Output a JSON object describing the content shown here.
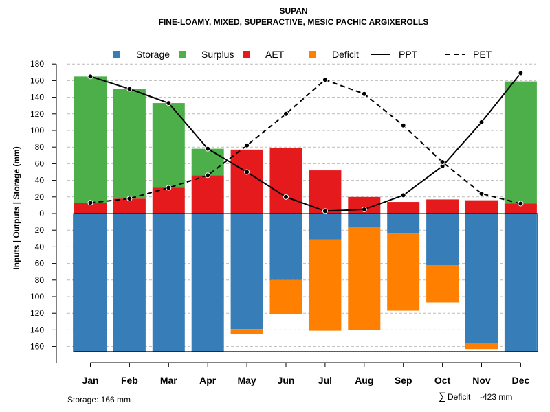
{
  "chart_data": {
    "type": "bar",
    "title": "SUPAN",
    "subtitle": "FINE-LOAMY, MIXED, SUPERACTIVE, MESIC PACHIC ARGIXEROLLS",
    "ylabel": "Inputs | Outputs | Storage    (mm)",
    "ylim": [
      -166,
      180
    ],
    "yticks": [
      180,
      160,
      140,
      120,
      100,
      80,
      60,
      40,
      20,
      0,
      -20,
      -40,
      -60,
      -80,
      -100,
      -120,
      -140,
      -160
    ],
    "ytick_labels": [
      "180",
      "160",
      "140",
      "120",
      "100",
      "80",
      "60",
      "40",
      "20",
      "0",
      "20",
      "40",
      "60",
      "80",
      "100",
      "120",
      "140",
      "160"
    ],
    "categories": [
      "Jan",
      "Feb",
      "Mar",
      "Apr",
      "May",
      "Jun",
      "Jul",
      "Aug",
      "Sep",
      "Oct",
      "Nov",
      "Dec"
    ],
    "colors": {
      "storage": "#377eb8",
      "surplus": "#4daf4a",
      "aet": "#e41a1c",
      "deficit": "#ff7f00",
      "line": "#000000",
      "grid": "#bbbbbb"
    },
    "legend": [
      {
        "key": "storage",
        "label": "Storage",
        "kind": "box"
      },
      {
        "key": "surplus",
        "label": "Surplus",
        "kind": "box"
      },
      {
        "key": "aet",
        "label": "AET",
        "kind": "box"
      },
      {
        "key": "deficit",
        "label": "Deficit",
        "kind": "box"
      },
      {
        "key": "ppt",
        "label": "PPT",
        "kind": "solid-line"
      },
      {
        "key": "pet",
        "label": "PET",
        "kind": "dashed-line"
      }
    ],
    "series": {
      "aet": [
        13,
        18,
        31,
        46,
        77,
        79,
        52,
        20,
        14,
        17,
        16,
        12
      ],
      "surplus": [
        152,
        132,
        102,
        32,
        0,
        0,
        0,
        0,
        0,
        0,
        0,
        147
      ],
      "storage": [
        166,
        166,
        166,
        166,
        139,
        80,
        31,
        16,
        24,
        62,
        156,
        166
      ],
      "deficit": [
        0,
        0,
        0,
        0,
        6,
        41,
        110,
        124,
        93,
        45,
        7,
        0
      ],
      "ppt": [
        165,
        150,
        133,
        78,
        50,
        20,
        3,
        5,
        22,
        57,
        110,
        169
      ],
      "pet": [
        13,
        18,
        31,
        46,
        82,
        120,
        161,
        144,
        106,
        62,
        24,
        12
      ]
    },
    "notes": {
      "storage": "Storage: 166 mm",
      "deficit_symbol": "∑",
      "deficit": "Deficit = -423 mm"
    }
  }
}
